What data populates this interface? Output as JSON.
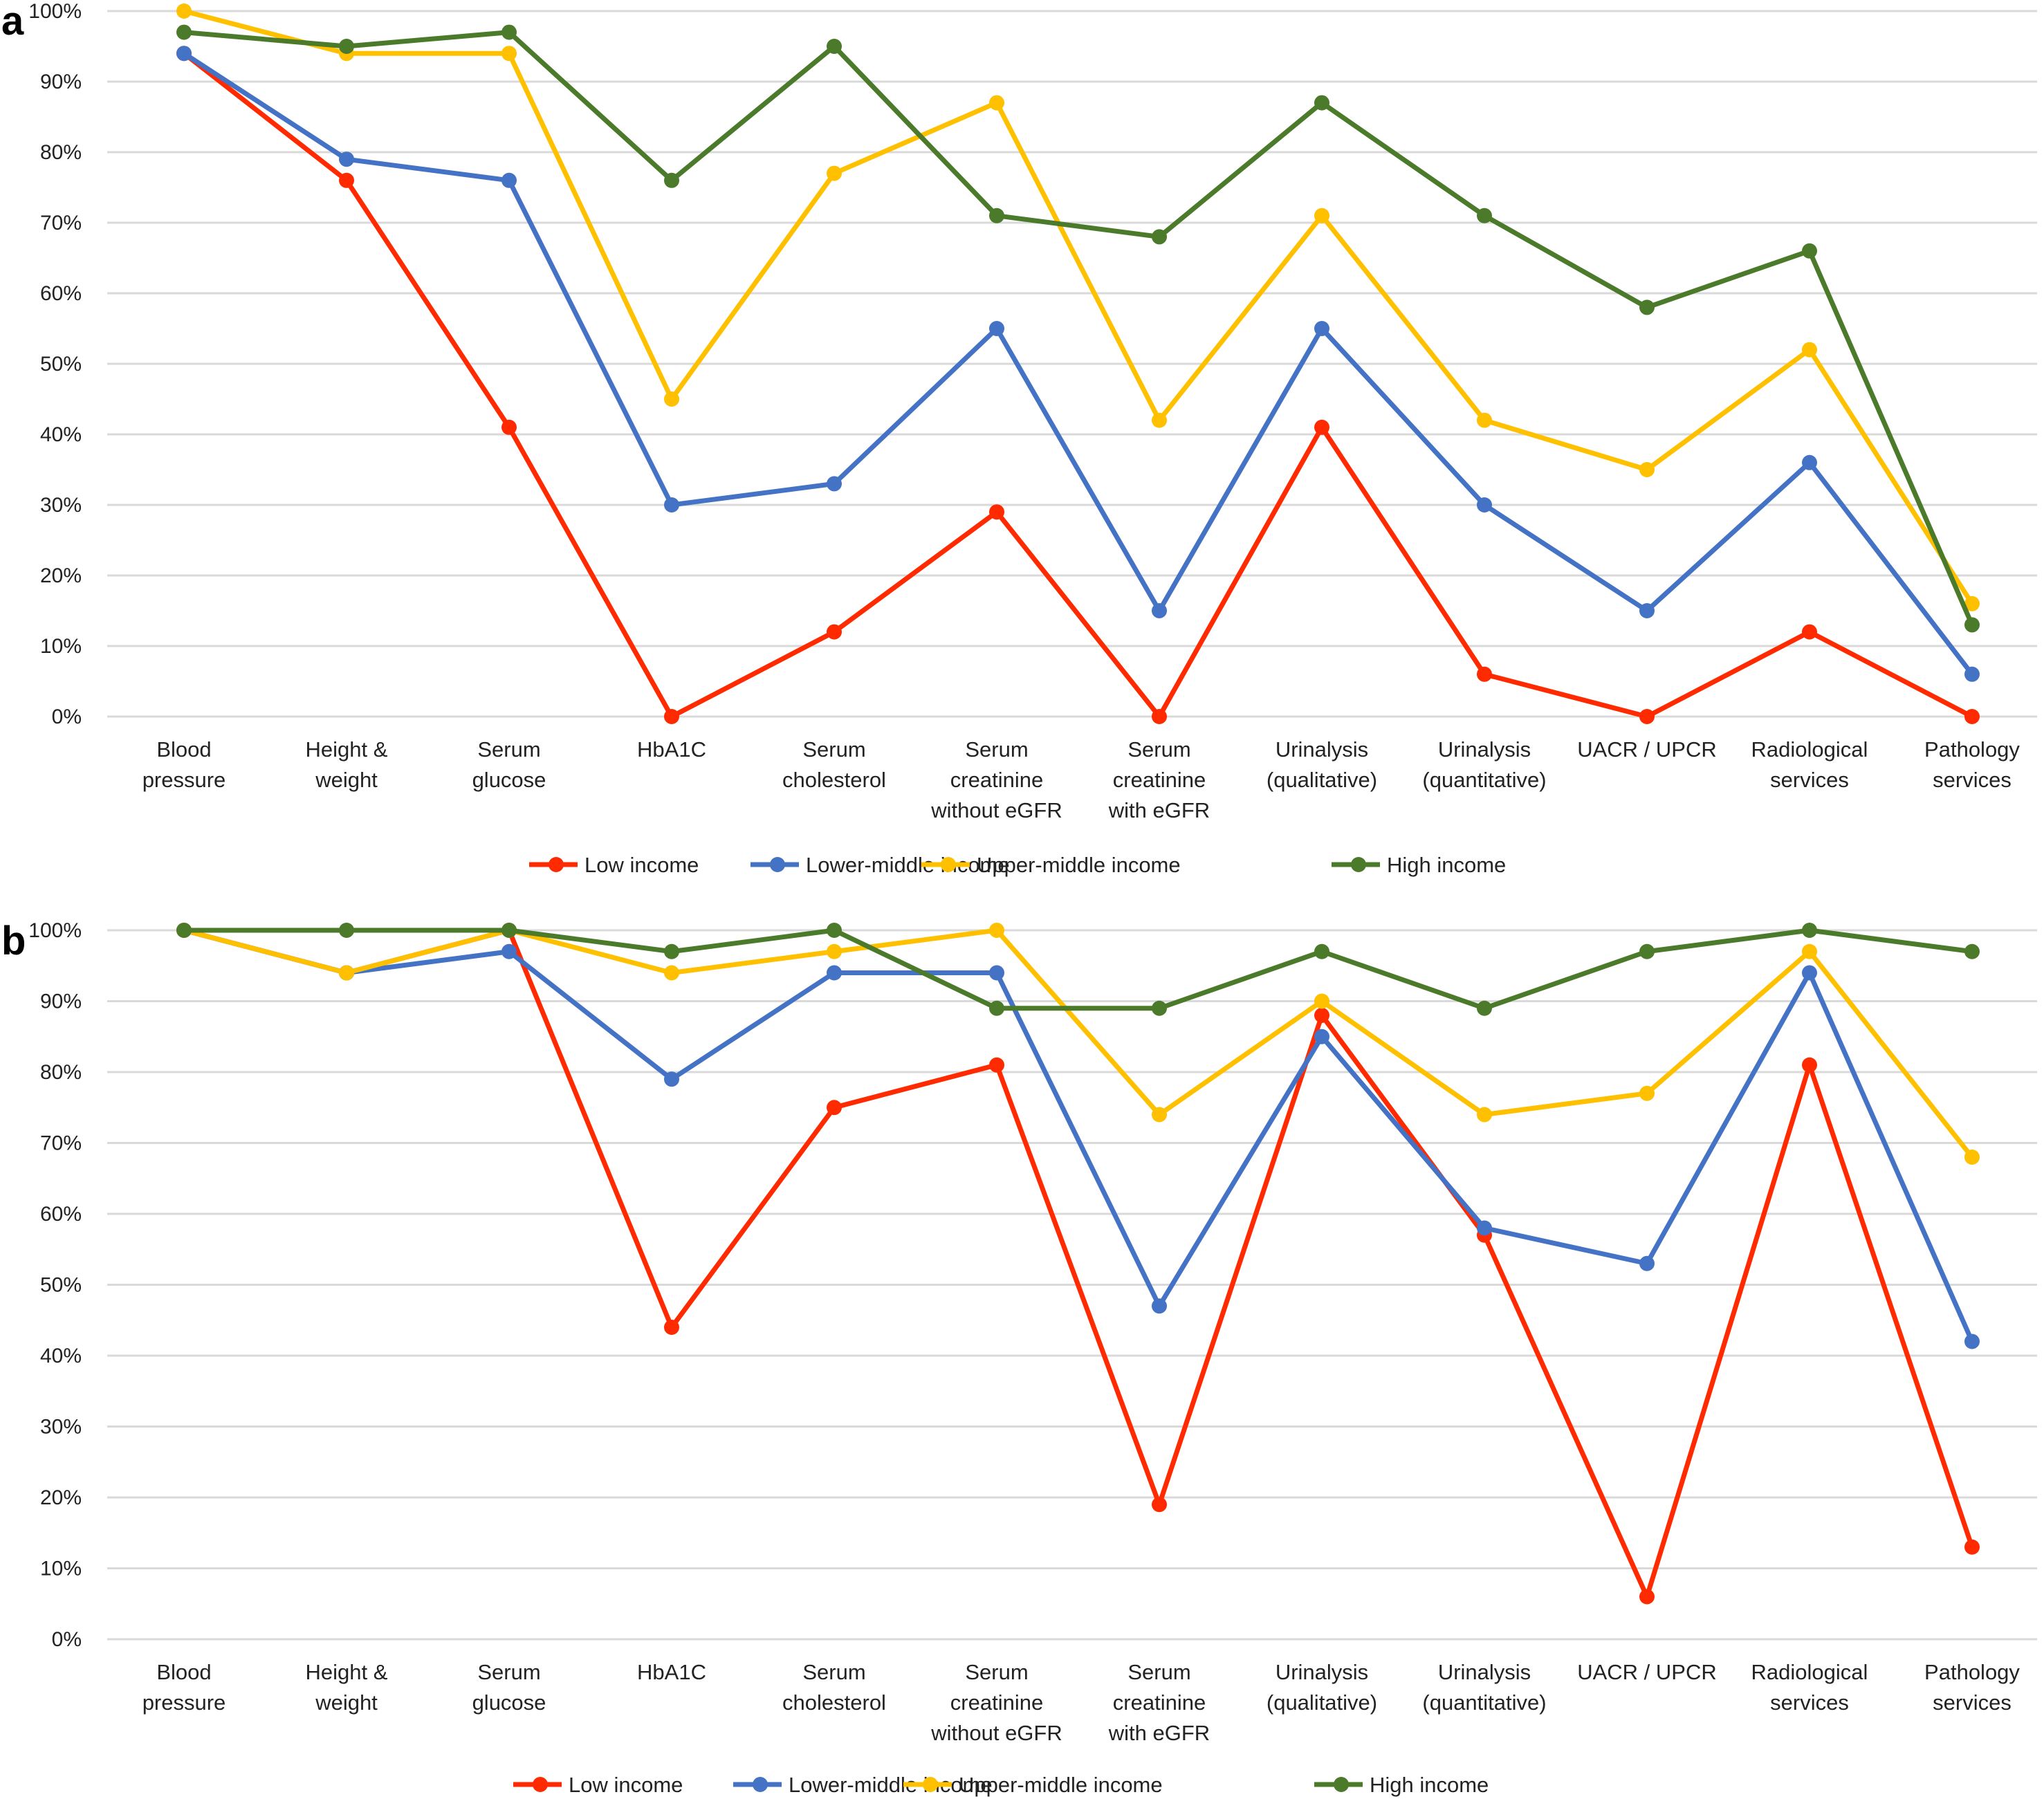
{
  "chart_data": [
    {
      "panel": "a",
      "type": "line",
      "categories": [
        [
          "Blood",
          "pressure"
        ],
        [
          "Height &",
          "weight"
        ],
        [
          "Serum",
          "glucose"
        ],
        [
          "HbA1C"
        ],
        [
          "Serum",
          "cholesterol"
        ],
        [
          "Serum",
          "creatinine",
          "without eGFR"
        ],
        [
          "Serum",
          "creatinine",
          "with eGFR"
        ],
        [
          "Urinalysis",
          "(qualitative)"
        ],
        [
          "Urinalysis",
          "(quantitative)"
        ],
        [
          "UACR / UPCR"
        ],
        [
          "Radiological",
          "services"
        ],
        [
          "Pathology",
          "services"
        ]
      ],
      "yticks": [
        "0%",
        "10%",
        "20%",
        "30%",
        "40%",
        "50%",
        "60%",
        "70%",
        "80%",
        "90%",
        "100%"
      ],
      "ylim": [
        0,
        100
      ],
      "grid": true,
      "legend_position": "bottom",
      "series": [
        {
          "name": "Low income",
          "color": "#ff2a00",
          "values": [
            94,
            76,
            41,
            0,
            12,
            29,
            0,
            41,
            6,
            0,
            12,
            0
          ]
        },
        {
          "name": "Lower-middle income",
          "color": "#4472c4",
          "values": [
            94,
            79,
            76,
            30,
            33,
            55,
            15,
            55,
            30,
            15,
            36,
            6
          ]
        },
        {
          "name": "Upper-middle income",
          "color": "#ffc000",
          "values": [
            100,
            94,
            94,
            45,
            77,
            87,
            42,
            71,
            42,
            35,
            52,
            16
          ]
        },
        {
          "name": "High income",
          "color": "#4a7a2a",
          "values": [
            97,
            95,
            97,
            76,
            95,
            71,
            68,
            87,
            71,
            58,
            66,
            13
          ]
        }
      ]
    },
    {
      "panel": "b",
      "type": "line",
      "categories": [
        [
          "Blood",
          "pressure"
        ],
        [
          "Height &",
          "weight"
        ],
        [
          "Serum",
          "glucose"
        ],
        [
          "HbA1C"
        ],
        [
          "Serum",
          "cholesterol"
        ],
        [
          "Serum",
          "creatinine",
          "without eGFR"
        ],
        [
          "Serum",
          "creatinine",
          "with eGFR"
        ],
        [
          "Urinalysis",
          "(qualitative)"
        ],
        [
          "Urinalysis",
          "(quantitative)"
        ],
        [
          "UACR / UPCR"
        ],
        [
          "Radiological",
          "services"
        ],
        [
          "Pathology",
          "services"
        ]
      ],
      "yticks": [
        "0%",
        "10%",
        "20%",
        "30%",
        "40%",
        "50%",
        "60%",
        "70%",
        "80%",
        "90%",
        "100%"
      ],
      "ylim": [
        0,
        100
      ],
      "grid": true,
      "legend_position": "bottom",
      "series": [
        {
          "name": "Low income",
          "color": "#ff2a00",
          "values": [
            100,
            94,
            100,
            44,
            75,
            81,
            19,
            88,
            57,
            6,
            81,
            13
          ]
        },
        {
          "name": "Lower-middle income",
          "color": "#4472c4",
          "values": [
            100,
            94,
            97,
            79,
            94,
            94,
            47,
            85,
            58,
            53,
            94,
            42
          ]
        },
        {
          "name": "Upper-middle income",
          "color": "#ffc000",
          "values": [
            100,
            94,
            100,
            94,
            97,
            100,
            74,
            90,
            74,
            77,
            97,
            68
          ]
        },
        {
          "name": "High income",
          "color": "#4a7a2a",
          "values": [
            100,
            100,
            100,
            97,
            100,
            89,
            89,
            97,
            89,
            97,
            100,
            97
          ]
        }
      ]
    }
  ]
}
